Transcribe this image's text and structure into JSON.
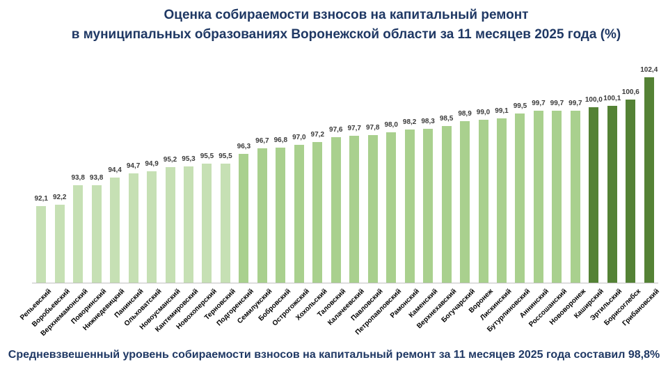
{
  "title": {
    "line1": "Оценка собираемости взносов на капитальный ремонт",
    "line2": "в муниципальных образованиях Воронежской области за 11 месяцев 2025 года (%)"
  },
  "footer": "Средневзвешенный уровень собираемости взносов на капитальный ремонт за 11 месяцев 2025 года составил 98,8%",
  "chart_data": {
    "type": "bar",
    "title": "Оценка собираемости взносов на капитальный ремонт в муниципальных образованиях Воронежской области за 11 месяцев 2025 года (%)",
    "categories": [
      "Репьевский",
      "Воробьевский",
      "Верхнемамонский",
      "Поворинский",
      "Нижнедевицкий",
      "Панинский",
      "Ольховатский",
      "Новоусманский",
      "Кантемировский",
      "Новохоперский",
      "Терновский",
      "Подгоренский",
      "Семилукский",
      "Бобровский",
      "Острогожский",
      "Хохольский",
      "Таловский",
      "Калачеевский",
      "Павловский",
      "Петропавловский",
      "Рамонский",
      "Каменский",
      "Верхнехавский",
      "Богучарский",
      "Воронеж",
      "Лискинский",
      "Бутурлиновский",
      "Аннинский",
      "Россошанский",
      "Нововоронеж",
      "Каширский",
      "Эртильский",
      "Борисоглебск",
      "Грибановский"
    ],
    "values": [
      92.1,
      92.2,
      93.8,
      93.8,
      94.4,
      94.7,
      94.9,
      95.2,
      95.3,
      95.5,
      95.5,
      96.3,
      96.7,
      96.8,
      97.0,
      97.2,
      97.6,
      97.7,
      97.8,
      98.0,
      98.2,
      98.3,
      98.5,
      98.9,
      99.0,
      99.1,
      99.5,
      99.7,
      99.7,
      99.7,
      100.0,
      100.1,
      100.6,
      102.4
    ],
    "xlabel": "",
    "ylabel": "",
    "ylim": [
      86,
      103
    ],
    "grid": false,
    "legend": "none",
    "decimal_separator": ",",
    "colors": {
      "light": "#C6E0B4",
      "medium": "#A9D08E",
      "dark": "#548235"
    },
    "color_thresholds": {
      "medium_min": 96,
      "dark_min": 100
    }
  }
}
